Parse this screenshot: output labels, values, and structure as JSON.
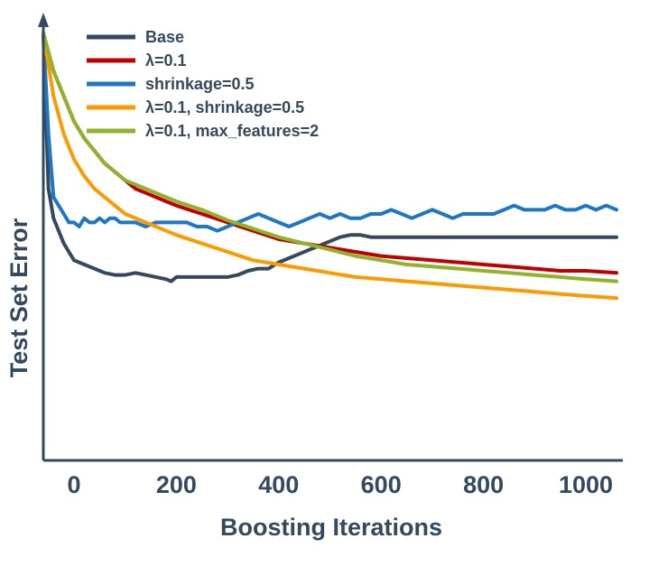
{
  "chart_data": {
    "type": "line",
    "title": "",
    "xlabel": "Boosting Iterations",
    "ylabel": "Test Set Error",
    "xlim": [
      -60,
      1060
    ],
    "ylim": [
      0,
      1
    ],
    "x_ticks": [
      "0",
      "200",
      "400",
      "600",
      "800",
      "1000"
    ],
    "x_tick_values": [
      0,
      200,
      400,
      600,
      800,
      1000
    ],
    "y_ticks": [],
    "grid": false,
    "legend_position": "top-left",
    "series": [
      {
        "name": "Base",
        "color": "#34495e",
        "x": [
          -60,
          -50,
          -40,
          -30,
          -20,
          -10,
          0,
          20,
          40,
          60,
          80,
          100,
          120,
          140,
          160,
          180,
          190,
          200,
          220,
          240,
          260,
          280,
          300,
          320,
          340,
          360,
          380,
          400,
          420,
          440,
          460,
          480,
          500,
          520,
          540,
          560,
          580,
          600,
          650,
          700,
          750,
          800,
          850,
          900,
          950,
          1000,
          1060
        ],
        "y": [
          0.99,
          0.62,
          0.55,
          0.52,
          0.49,
          0.47,
          0.45,
          0.44,
          0.43,
          0.42,
          0.415,
          0.415,
          0.42,
          0.415,
          0.41,
          0.405,
          0.4,
          0.41,
          0.41,
          0.41,
          0.41,
          0.41,
          0.41,
          0.415,
          0.425,
          0.43,
          0.43,
          0.445,
          0.455,
          0.465,
          0.475,
          0.485,
          0.495,
          0.505,
          0.51,
          0.51,
          0.505,
          0.505,
          0.505,
          0.505,
          0.505,
          0.505,
          0.505,
          0.505,
          0.505,
          0.505,
          0.505
        ]
      },
      {
        "name": "λ=0.1",
        "color": "#c00000",
        "x": [
          -60,
          -40,
          -20,
          0,
          20,
          40,
          60,
          80,
          100,
          120,
          140,
          160,
          180,
          200,
          250,
          300,
          350,
          400,
          450,
          500,
          550,
          600,
          650,
          700,
          750,
          800,
          850,
          900,
          950,
          1000,
          1060
        ],
        "y": [
          0.99,
          0.9,
          0.84,
          0.78,
          0.74,
          0.71,
          0.68,
          0.66,
          0.64,
          0.62,
          0.61,
          0.6,
          0.59,
          0.58,
          0.56,
          0.54,
          0.52,
          0.5,
          0.49,
          0.48,
          0.47,
          0.46,
          0.455,
          0.45,
          0.445,
          0.44,
          0.435,
          0.43,
          0.425,
          0.425,
          0.42
        ]
      },
      {
        "name": "shrinkage=0.5",
        "color": "#1f77c4",
        "x": [
          -60,
          -50,
          -40,
          -30,
          -20,
          -10,
          0,
          10,
          20,
          30,
          40,
          50,
          60,
          70,
          80,
          90,
          100,
          120,
          140,
          160,
          180,
          200,
          220,
          240,
          260,
          280,
          300,
          320,
          340,
          360,
          380,
          400,
          420,
          440,
          460,
          480,
          500,
          520,
          540,
          560,
          580,
          600,
          620,
          640,
          660,
          680,
          700,
          720,
          740,
          760,
          780,
          800,
          820,
          840,
          860,
          880,
          900,
          920,
          940,
          960,
          980,
          1000,
          1020,
          1040,
          1060
        ],
        "y": [
          0.99,
          0.75,
          0.6,
          0.58,
          0.56,
          0.54,
          0.54,
          0.53,
          0.55,
          0.54,
          0.54,
          0.55,
          0.54,
          0.55,
          0.55,
          0.54,
          0.54,
          0.54,
          0.53,
          0.54,
          0.54,
          0.54,
          0.54,
          0.53,
          0.53,
          0.52,
          0.53,
          0.54,
          0.55,
          0.56,
          0.55,
          0.54,
          0.53,
          0.54,
          0.55,
          0.56,
          0.55,
          0.56,
          0.55,
          0.55,
          0.56,
          0.56,
          0.57,
          0.56,
          0.55,
          0.56,
          0.57,
          0.56,
          0.55,
          0.56,
          0.56,
          0.56,
          0.56,
          0.57,
          0.58,
          0.57,
          0.57,
          0.57,
          0.58,
          0.57,
          0.57,
          0.58,
          0.57,
          0.58,
          0.57
        ]
      },
      {
        "name": "λ=0.1, shrinkage=0.5",
        "color": "#ff9900",
        "x": [
          -60,
          -40,
          -20,
          0,
          20,
          40,
          60,
          80,
          100,
          120,
          140,
          160,
          180,
          200,
          250,
          300,
          350,
          400,
          450,
          500,
          550,
          600,
          650,
          700,
          750,
          800,
          850,
          900,
          950,
          1000,
          1060
        ],
        "y": [
          0.99,
          0.84,
          0.75,
          0.69,
          0.65,
          0.62,
          0.6,
          0.58,
          0.56,
          0.55,
          0.54,
          0.53,
          0.52,
          0.51,
          0.49,
          0.47,
          0.45,
          0.44,
          0.43,
          0.42,
          0.41,
          0.405,
          0.4,
          0.395,
          0.39,
          0.385,
          0.38,
          0.375,
          0.37,
          0.365,
          0.36
        ]
      },
      {
        "name": "λ=0.1, max_features=2",
        "color": "#8fb32a",
        "x": [
          -60,
          -40,
          -20,
          0,
          20,
          40,
          60,
          80,
          100,
          120,
          140,
          160,
          180,
          200,
          250,
          300,
          350,
          400,
          450,
          500,
          550,
          600,
          650,
          700,
          750,
          800,
          850,
          900,
          950,
          1000,
          1060
        ],
        "y": [
          0.99,
          0.9,
          0.84,
          0.78,
          0.74,
          0.71,
          0.68,
          0.66,
          0.64,
          0.63,
          0.62,
          0.61,
          0.6,
          0.59,
          0.57,
          0.545,
          0.525,
          0.505,
          0.49,
          0.475,
          0.46,
          0.45,
          0.44,
          0.435,
          0.43,
          0.425,
          0.42,
          0.415,
          0.41,
          0.405,
          0.4
        ]
      }
    ]
  }
}
